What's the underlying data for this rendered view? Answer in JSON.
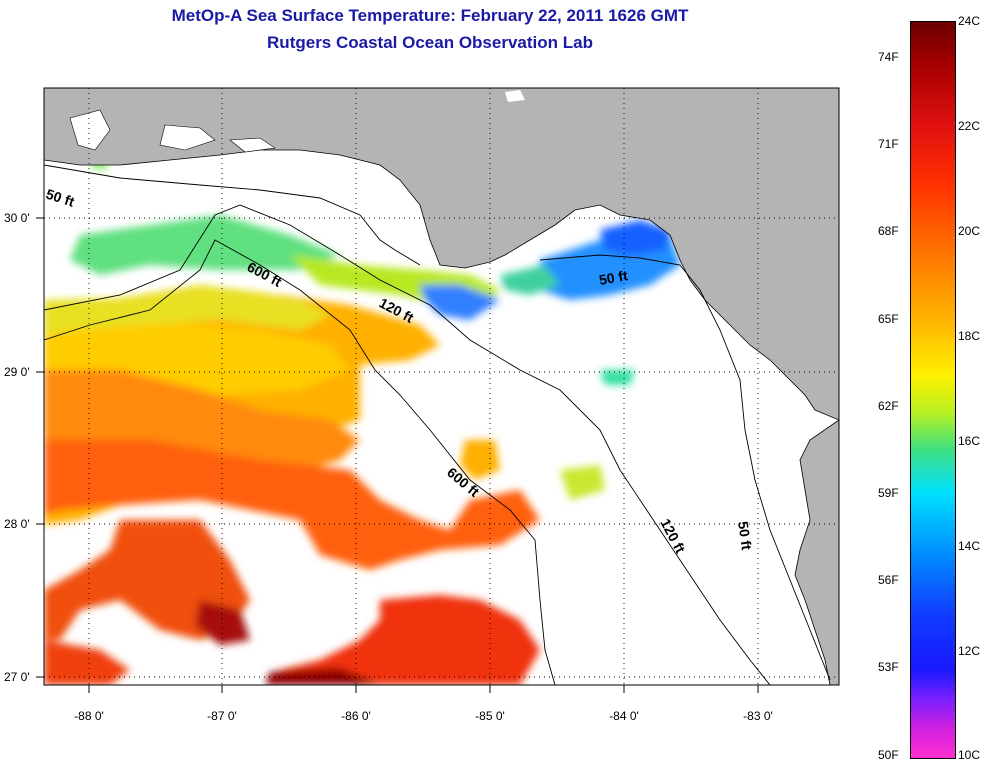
{
  "title": {
    "line1": "MetOp-A Sea Surface Temperature:  February 22, 2011 1626 GMT",
    "line2": "Rutgers Coastal Ocean Observation Lab"
  },
  "map": {
    "x_ticks": [
      "-88 0'",
      "-87 0'",
      "-86 0'",
      "-85 0'",
      "-84 0'",
      "-83 0'"
    ],
    "y_ticks": [
      "30 0'",
      "29 0'",
      "28 0'",
      "27 0'"
    ],
    "contour_labels": {
      "c50_west": "50 ft",
      "c600_north": "600 ft",
      "c120_north": "120 ft",
      "c50_east": "50 ft",
      "c600_south": "600 ft",
      "c120_south": "120 ft",
      "c50_south": "50 ft"
    },
    "colors": {
      "land": "#b4b4b4",
      "cloud": "#ffffff"
    }
  },
  "colorbar": {
    "fahrenheit": [
      "74F",
      "71F",
      "68F",
      "65F",
      "62F",
      "59F",
      "56F",
      "53F",
      "50F"
    ],
    "celsius": [
      "24C",
      "22C",
      "20C",
      "18C",
      "16C",
      "14C",
      "12C",
      "10C"
    ]
  }
}
